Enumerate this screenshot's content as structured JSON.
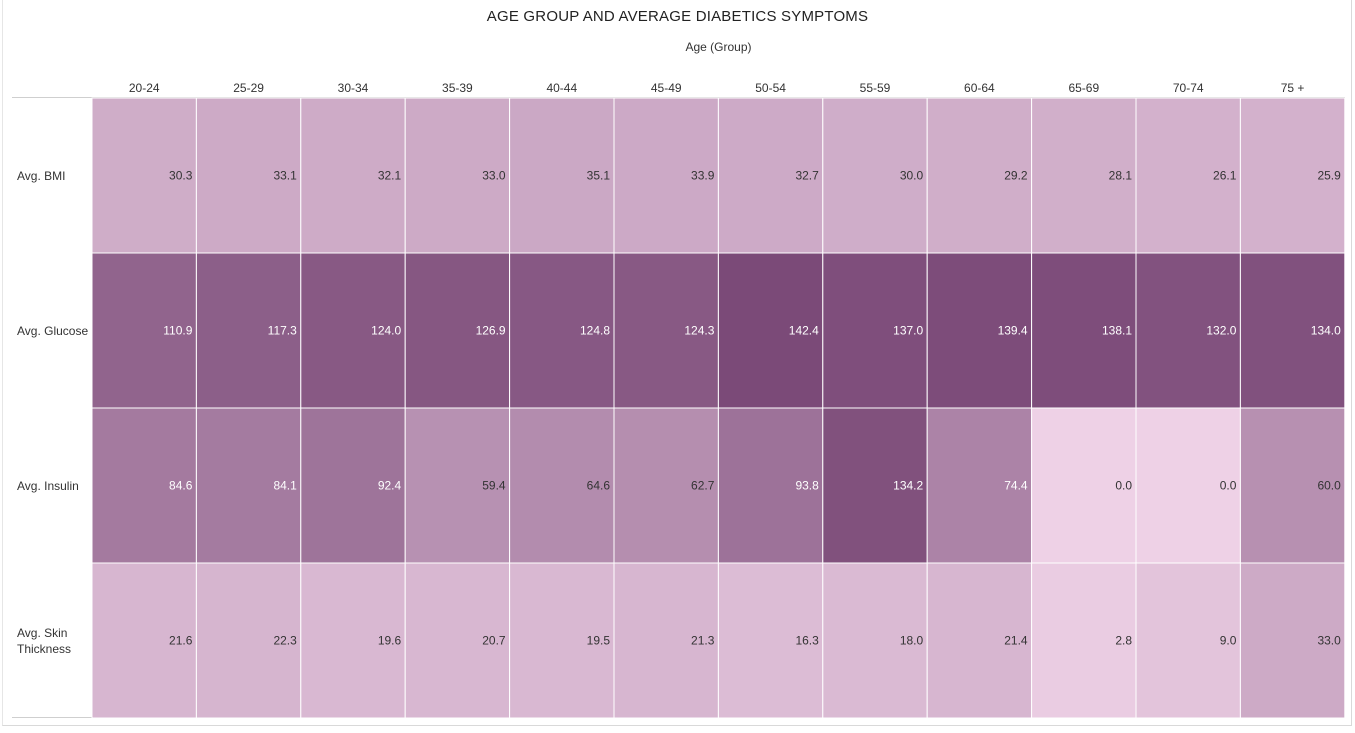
{
  "chart_data": {
    "type": "heatmap",
    "title": "AGE GROUP AND AVERAGE DIABETICS SYMPTOMS",
    "column_header": "Age (Group)",
    "columns": [
      "20-24",
      "25-29",
      "30-34",
      "35-39",
      "40-44",
      "45-49",
      "50-54",
      "55-59",
      "60-64",
      "65-69",
      "70-74",
      "75 +"
    ],
    "rows": [
      "Avg. BMI",
      "Avg. Glucose",
      "Avg. Insulin",
      "Avg. Skin Thickness"
    ],
    "values": [
      [
        "30.3",
        "33.1",
        "32.1",
        "33.0",
        "35.1",
        "33.9",
        "32.7",
        "30.0",
        "29.2",
        "28.1",
        "26.1",
        "25.9"
      ],
      [
        "110.9",
        "117.3",
        "124.0",
        "126.9",
        "124.8",
        "124.3",
        "142.4",
        "137.0",
        "139.4",
        "138.1",
        "132.0",
        "134.0"
      ],
      [
        "84.6",
        "84.1",
        "92.4",
        "59.4",
        "64.6",
        "62.7",
        "93.8",
        "134.2",
        "74.4",
        "0.0",
        "0.0",
        "60.0"
      ],
      [
        "21.6",
        "22.3",
        "19.6",
        "20.7",
        "19.5",
        "21.3",
        "16.3",
        "18.0",
        "21.4",
        "2.8",
        "9.0",
        "33.0"
      ]
    ],
    "color_scale": {
      "min": 0,
      "max": 142.4,
      "low_color": "#eed1e6",
      "high_color": "#7b4a78"
    }
  }
}
